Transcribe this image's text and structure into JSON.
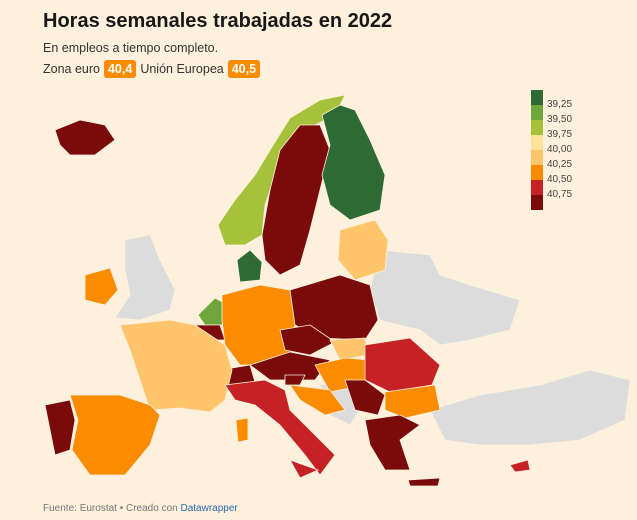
{
  "title": "Horas semanales trabajadas en 2022",
  "subtitle": "En empleos a tiempo completo.",
  "averages": {
    "euro_label": "Zona euro",
    "euro_value": "40,4",
    "eu_label": "Unión Europea",
    "eu_value": "40,5"
  },
  "legend": {
    "labels": [
      "39,25",
      "39,50",
      "39,75",
      "40,00",
      "40,25",
      "40,50",
      "40,75"
    ],
    "colors": [
      "#2e6a34",
      "#6ea63b",
      "#a6c23a",
      "#fde29b",
      "#fec56b",
      "#fb8c00",
      "#c62226",
      "#7b0a0a"
    ]
  },
  "no_data_color": "#dcdcdc",
  "footer": {
    "text": "Fuente: Eurostat • Creado con ",
    "link": "Datawrapper"
  }
}
